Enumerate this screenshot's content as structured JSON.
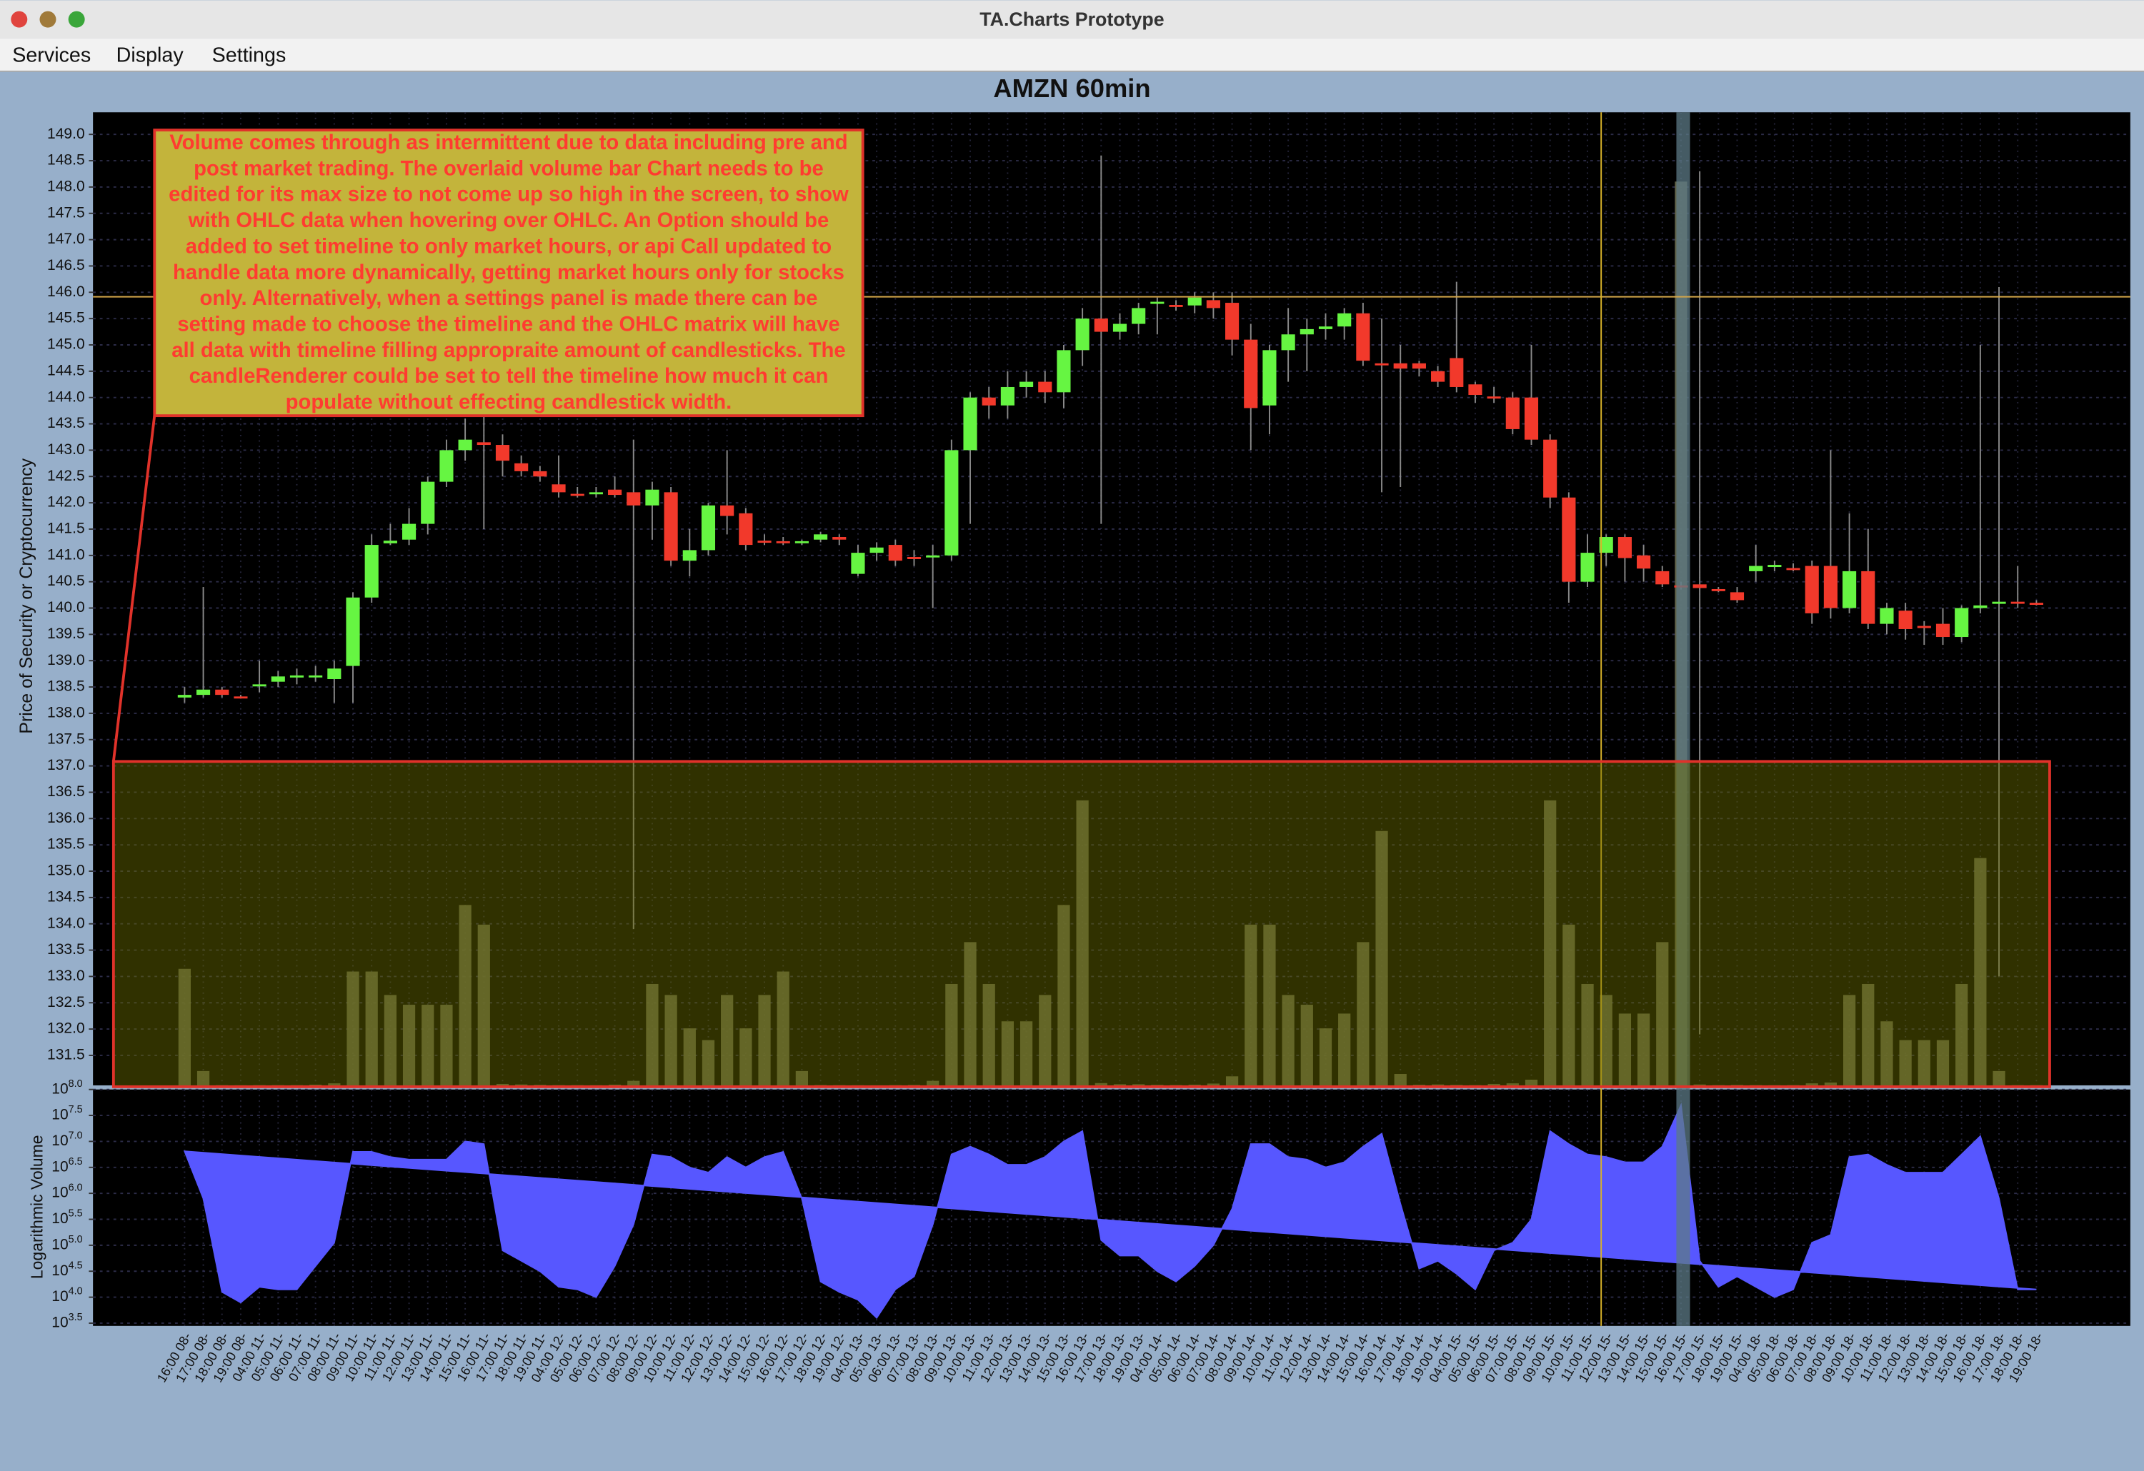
{
  "window": {
    "title": "TA.Charts Prototype"
  },
  "menu": [
    "Services",
    "Display",
    "Settings"
  ],
  "chart_data": [
    {
      "type": "candlestick",
      "title": "AMZN 60min",
      "y_label": "Price of Security or Cryptocurrency",
      "annotation": "Volume comes through as intermittent due to data including pre and post market trading. The overlaid volume bar Chart needs to be edited for its max size to not come up so high in the screen, to show with OHLC data when hovering over OHLC. An Option should be added to set timeline to only market hours, or api Call updated to handle data more dynamically, getting market hours only for stocks only. Alternatively, when a settings panel is made there can be setting made to choose the timeline and the OHLC matrix will have all data with timeline filling appropraite amount of candlesticks. The candleRenderer could be set to tell the timeline how much it can populate without effecting candlestick width.",
      "categories": [
        "16:00 08-",
        "17:00 08-",
        "18:00 08-",
        "19:00 08-",
        "04:00 11-",
        "05:00 11-",
        "06:00 11-",
        "07:00 11-",
        "08:00 11-",
        "09:00 11-",
        "10:00 11-",
        "11:00 11-",
        "12:00 11-",
        "13:00 11-",
        "14:00 11-",
        "15:00 11-",
        "16:00 11-",
        "17:00 11-",
        "18:00 11-",
        "19:00 11-",
        "04:00 12-",
        "05:00 12-",
        "06:00 12-",
        "07:00 12-",
        "08:00 12-",
        "09:00 12-",
        "10:00 12-",
        "11:00 12-",
        "12:00 12-",
        "13:00 12-",
        "14:00 12-",
        "15:00 12-",
        "16:00 12-",
        "17:00 12-",
        "18:00 12-",
        "19:00 12-",
        "04:00 13-",
        "05:00 13-",
        "06:00 13-",
        "07:00 13-",
        "08:00 13-",
        "09:00 13-",
        "10:00 13-",
        "11:00 13-",
        "12:00 13-",
        "13:00 13-",
        "14:00 13-",
        "15:00 13-",
        "16:00 13-",
        "17:00 13-",
        "18:00 13-",
        "19:00 13-",
        "04:00 14-",
        "05:00 14-",
        "06:00 14-",
        "07:00 14-",
        "08:00 14-",
        "09:00 14-",
        "10:00 14-",
        "11:00 14-",
        "12:00 14-",
        "13:00 14-",
        "14:00 14-",
        "15:00 14-",
        "16:00 14-",
        "17:00 14-",
        "18:00 14-",
        "19:00 14-",
        "04:00 15-",
        "05:00 15-",
        "06:00 15-",
        "07:00 15-",
        "08:00 15-",
        "09:00 15-",
        "10:00 15-",
        "11:00 15-",
        "12:00 15-",
        "13:00 15-",
        "14:00 15-",
        "15:00 15-",
        "16:00 15-",
        "17:00 15-",
        "18:00 15-",
        "19:00 15-",
        "04:00 18-",
        "05:00 18-",
        "06:00 18-",
        "07:00 18-",
        "08:00 18-",
        "09:00 18-",
        "10:00 18-",
        "11:00 18-",
        "12:00 18-",
        "13:00 18-",
        "14:00 18-",
        "15:00 18-",
        "16:00 18-",
        "17:00 18-",
        "18:00 18-",
        "19:00 18-"
      ],
      "open": [
        138.3,
        138.35,
        138.45,
        138.32,
        138.52,
        138.6,
        138.68,
        138.7,
        138.65,
        138.9,
        140.2,
        141.23,
        141.3,
        141.6,
        142.4,
        143.0,
        143.15,
        143.1,
        142.75,
        142.6,
        142.35,
        142.17,
        142.18,
        142.25,
        142.2,
        141.95,
        142.2,
        140.9,
        141.1,
        141.95,
        141.8,
        141.28,
        141.27,
        141.25,
        141.3,
        141.35,
        140.65,
        141.05,
        141.2,
        140.97,
        140.98,
        141.0,
        143.0,
        144.0,
        143.85,
        144.2,
        144.3,
        144.1,
        144.9,
        145.5,
        145.25,
        145.4,
        145.78,
        145.76,
        145.75,
        145.85,
        145.8,
        145.1,
        143.85,
        144.9,
        145.2,
        145.3,
        145.35,
        145.6,
        144.65,
        144.65,
        144.65,
        144.5,
        144.75,
        144.25,
        144.02,
        144.0,
        144.0,
        143.2,
        142.1,
        140.5,
        141.05,
        141.35,
        141.0,
        140.7,
        140.43,
        140.45,
        140.36,
        140.3,
        140.7,
        140.78,
        140.76,
        140.8,
        140.8,
        140.0,
        140.7,
        139.7,
        139.95,
        139.66,
        139.7,
        139.45,
        140.0,
        140.08,
        140.12,
        140.1
      ],
      "high": [
        138.5,
        140.4,
        138.5,
        138.35,
        139.0,
        138.8,
        138.85,
        138.9,
        139.0,
        140.3,
        141.4,
        141.6,
        141.9,
        142.5,
        143.2,
        143.6,
        143.9,
        143.3,
        142.9,
        142.7,
        142.9,
        142.3,
        142.3,
        142.5,
        143.2,
        142.4,
        142.3,
        141.5,
        142.0,
        143.0,
        141.9,
        141.4,
        141.35,
        141.3,
        141.45,
        141.4,
        141.2,
        141.25,
        141.3,
        141.1,
        141.2,
        143.2,
        144.1,
        144.2,
        144.5,
        144.5,
        144.5,
        145.0,
        145.7,
        148.6,
        145.6,
        145.8,
        145.9,
        145.85,
        146.0,
        146.0,
        146.0,
        145.4,
        145.0,
        145.7,
        145.5,
        145.6,
        145.7,
        145.8,
        145.5,
        145.0,
        144.7,
        144.6,
        146.2,
        144.3,
        144.2,
        144.1,
        145.0,
        143.3,
        142.2,
        141.4,
        141.4,
        141.4,
        141.2,
        140.8,
        140.5,
        148.3,
        140.4,
        140.4,
        141.2,
        140.9,
        140.85,
        140.9,
        143.0,
        141.8,
        141.5,
        140.1,
        140.1,
        139.75,
        140.0,
        140.05,
        145.0,
        146.1,
        140.8,
        140.15
      ],
      "low": [
        138.2,
        138.3,
        138.3,
        138.28,
        138.4,
        138.5,
        138.55,
        138.6,
        138.2,
        138.2,
        140.1,
        141.2,
        141.2,
        141.4,
        142.3,
        142.8,
        141.5,
        142.5,
        142.5,
        142.4,
        142.1,
        142.1,
        142.1,
        142.1,
        133.9,
        141.3,
        140.8,
        140.6,
        141.0,
        141.4,
        141.1,
        141.2,
        141.2,
        141.2,
        141.25,
        141.2,
        140.6,
        140.9,
        140.8,
        140.8,
        140.0,
        140.9,
        141.6,
        143.6,
        143.6,
        144.0,
        143.9,
        143.8,
        144.6,
        141.6,
        145.1,
        145.2,
        145.2,
        145.65,
        145.6,
        145.5,
        144.8,
        143.0,
        143.3,
        144.3,
        144.5,
        145.1,
        145.1,
        144.6,
        142.2,
        142.3,
        144.4,
        144.2,
        144.1,
        143.9,
        143.9,
        143.3,
        143.1,
        141.9,
        140.1,
        140.4,
        140.8,
        140.5,
        140.5,
        140.4,
        140.35,
        131.9,
        140.3,
        140.1,
        140.5,
        140.7,
        140.7,
        139.7,
        139.8,
        139.9,
        139.6,
        139.5,
        139.4,
        139.3,
        139.3,
        139.35,
        139.9,
        133.0,
        140.0,
        140.05
      ],
      "close": [
        138.35,
        138.45,
        138.35,
        138.3,
        138.55,
        138.7,
        138.72,
        138.72,
        138.85,
        140.2,
        141.2,
        141.28,
        141.6,
        142.4,
        143.0,
        143.2,
        143.1,
        142.8,
        142.6,
        142.5,
        142.2,
        142.15,
        142.2,
        142.15,
        141.95,
        142.25,
        140.9,
        141.1,
        141.95,
        141.75,
        141.2,
        141.26,
        141.25,
        141.27,
        141.4,
        141.3,
        141.05,
        141.15,
        140.9,
        140.93,
        141.0,
        143.0,
        144.0,
        143.85,
        144.2,
        144.3,
        144.1,
        144.9,
        145.5,
        145.25,
        145.4,
        145.7,
        145.82,
        145.73,
        145.9,
        145.7,
        145.1,
        143.8,
        144.9,
        145.2,
        145.3,
        145.35,
        145.6,
        144.7,
        144.62,
        144.55,
        144.55,
        144.3,
        144.2,
        144.05,
        143.98,
        143.4,
        143.2,
        142.1,
        140.5,
        141.05,
        141.35,
        140.95,
        140.75,
        140.45,
        140.41,
        140.38,
        140.34,
        140.15,
        140.8,
        140.82,
        140.74,
        139.9,
        140.0,
        140.7,
        139.7,
        140.0,
        139.6,
        139.62,
        139.45,
        140.0,
        140.05,
        140.12,
        140.1,
        140.08
      ],
      "up_color": "#66f542",
      "down_color": "#f2392b",
      "volume_color": "#717354",
      "ylim": [
        130.93,
        149.42
      ],
      "yticks": [
        {
          "value": 131.5,
          "label": "131.5"
        },
        {
          "value": 132,
          "label": "132.0"
        },
        {
          "value": 132.5,
          "label": "132.5"
        },
        {
          "value": 133,
          "label": "133.0"
        },
        {
          "value": 133.5,
          "label": "133.5"
        },
        {
          "value": 134,
          "label": "134.0"
        },
        {
          "value": 134.5,
          "label": "134.5"
        },
        {
          "value": 135,
          "label": "135.0"
        },
        {
          "value": 135.5,
          "label": "135.5"
        },
        {
          "value": 136,
          "label": "136.0"
        },
        {
          "value": 136.5,
          "label": "136.5"
        },
        {
          "value": 137,
          "label": "137.0"
        },
        {
          "value": 137.5,
          "label": "137.5"
        },
        {
          "value": 138,
          "label": "138.0"
        },
        {
          "value": 138.5,
          "label": "138.5"
        },
        {
          "value": 139,
          "label": "139.0"
        },
        {
          "value": 139.5,
          "label": "139.5"
        },
        {
          "value": 140,
          "label": "140.0"
        },
        {
          "value": 140.5,
          "label": "140.5"
        },
        {
          "value": 141,
          "label": "141.0"
        },
        {
          "value": 141.5,
          "label": "141.5"
        },
        {
          "value": 142,
          "label": "142.0"
        },
        {
          "value": 142.5,
          "label": "142.5"
        },
        {
          "value": 143,
          "label": "143.0"
        },
        {
          "value": 143.5,
          "label": "143.5"
        },
        {
          "value": 144,
          "label": "144.0"
        },
        {
          "value": 144.5,
          "label": "144.5"
        },
        {
          "value": 145,
          "label": "145.0"
        },
        {
          "value": 145.5,
          "label": "145.5"
        },
        {
          "value": 146,
          "label": "146.0"
        },
        {
          "value": 146.5,
          "label": "146.5"
        },
        {
          "value": 147,
          "label": "147.0"
        },
        {
          "value": 147.5,
          "label": "147.5"
        },
        {
          "value": 148,
          "label": "148.0"
        },
        {
          "value": 148.5,
          "label": "148.5"
        },
        {
          "value": 149,
          "label": "149.0"
        }
      ],
      "grid": true
    },
    {
      "type": "area",
      "y_label": "Logarithmic Volume",
      "color": "#5757ff",
      "log_scale": true,
      "values": [
        6460000,
        794000,
        12600,
        7900,
        15800,
        14100,
        14100,
        39800,
        112000,
        6310000,
        6310000,
        5010000,
        4470000,
        4470000,
        4470000,
        10000000,
        8910000,
        79400,
        50100,
        31600,
        15800,
        14100,
        10000,
        39800,
        251000,
        5620000,
        5010000,
        3160000,
        2510000,
        5010000,
        3160000,
        5010000,
        6310000,
        794000,
        20000,
        12600,
        8900,
        4000,
        14100,
        25100,
        251000,
        5620000,
        7940000,
        5620000,
        3550000,
        3550000,
        5010000,
        10000000,
        15800000,
        126000,
        63100,
        63100,
        31600,
        20000,
        39800,
        100000,
        501000,
        8910000,
        8910000,
        5010000,
        4470000,
        3160000,
        3980000,
        7940000,
        14100000,
        631000,
        35500,
        50100,
        28200,
        14100,
        79400,
        112000,
        316000,
        15800000,
        8910000,
        5620000,
        5010000,
        3980000,
        3980000,
        7940000,
        50100000,
        50100,
        15800,
        25100,
        15800,
        10000,
        14100,
        112000,
        158000,
        5010000,
        5620000,
        3550000,
        2510000,
        2510000,
        2510000,
        5620000,
        12600000,
        794000,
        14100,
        14100
      ],
      "ylim": [
        2800,
        100000000
      ],
      "yticks": [
        {
          "value": 3162.28,
          "label": "10",
          "exponent": "3.5"
        },
        {
          "value": 10000,
          "label": "10",
          "exponent": "4.0"
        },
        {
          "value": 31622.78,
          "label": "10",
          "exponent": "4.5"
        },
        {
          "value": 100000,
          "label": "10",
          "exponent": "5.0"
        },
        {
          "value": 316227.77,
          "label": "10",
          "exponent": "5.5"
        },
        {
          "value": 1000000,
          "label": "10",
          "exponent": "6.0"
        },
        {
          "value": 3162277.66,
          "label": "10",
          "exponent": "6.5"
        },
        {
          "value": 10000000,
          "label": "10",
          "exponent": "7.0"
        },
        {
          "value": 31622776.6,
          "label": "10",
          "exponent": "7.5"
        },
        {
          "value": 100000000,
          "label": "10",
          "exponent": "8.0"
        }
      ],
      "grid": true
    }
  ]
}
